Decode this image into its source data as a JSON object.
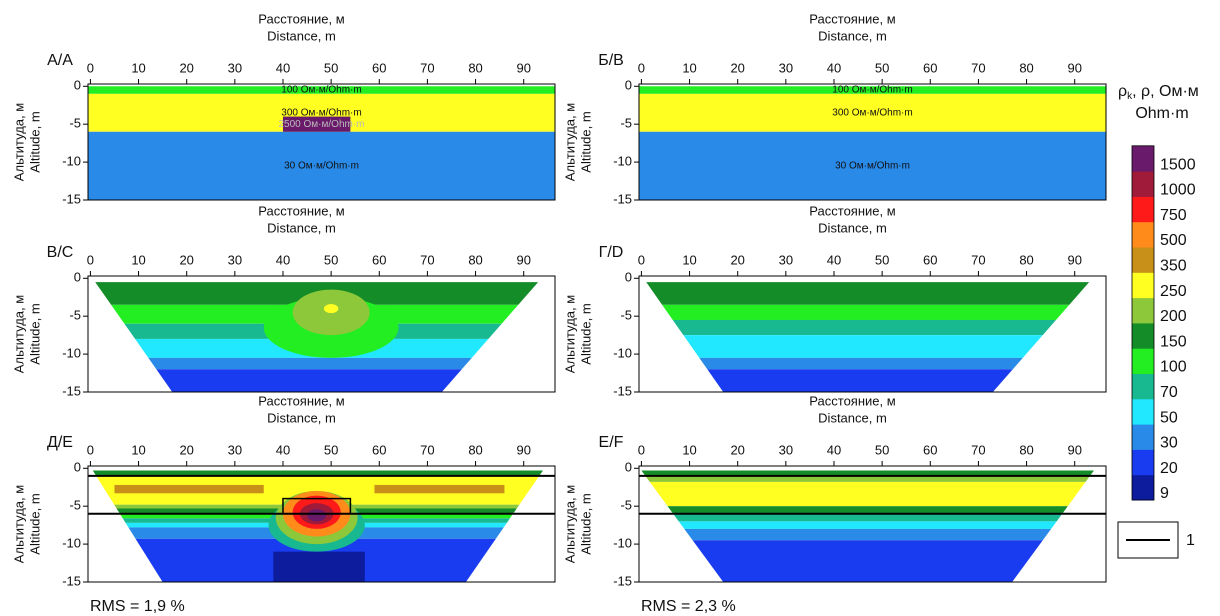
{
  "chart_data": [
    {
      "type": "section",
      "panel_label": "А/А",
      "x_title": [
        "Расстояние, м",
        "Distance, m"
      ],
      "y_title": [
        "Альтитуда, м",
        "Altitude, m"
      ],
      "xlim": [
        -0.5,
        96.5
      ],
      "ylim": [
        -15,
        0.3
      ],
      "xticks": [
        0,
        10,
        20,
        30,
        40,
        50,
        60,
        70,
        80,
        90
      ],
      "yticks": [
        0,
        -5,
        -10,
        -15
      ],
      "layers": [
        {
          "rho": 100,
          "top": 0,
          "bottom": -1,
          "label": "100 Ом·м/Ohm·m"
        },
        {
          "rho": 300,
          "top": -1,
          "bottom": -6,
          "label": "300 Ом·м/Ohm·m"
        },
        {
          "rho": 30,
          "top": -6,
          "bottom": -15,
          "label": "30 Ом·м/Ohm·m"
        }
      ],
      "anomalies": [
        {
          "shape": "rect",
          "x": [
            40,
            54
          ],
          "y": [
            -6,
            -4
          ],
          "rho": 2500,
          "label": "2500 Ом·м/Ohm·m"
        }
      ]
    },
    {
      "type": "section",
      "panel_label": "Б/B",
      "x_title": [
        "Расстояние, м",
        "Distance, m"
      ],
      "y_title": [
        "Альтитуда, м",
        "Altitude, m"
      ],
      "xlim": [
        -0.5,
        96.5
      ],
      "ylim": [
        -15,
        0.3
      ],
      "xticks": [
        0,
        10,
        20,
        30,
        40,
        50,
        60,
        70,
        80,
        90
      ],
      "yticks": [
        0,
        -5,
        -10,
        -15
      ],
      "layers": [
        {
          "rho": 100,
          "top": 0,
          "bottom": -1,
          "label": "100 Ом·м/Ohm·m"
        },
        {
          "rho": 300,
          "top": -1,
          "bottom": -6,
          "label": "300 Ом·м/Ohm·m"
        },
        {
          "rho": 30,
          "top": -6,
          "bottom": -15,
          "label": "30 Ом·м/Ohm·m"
        }
      ]
    },
    {
      "type": "section",
      "panel_label": "В/C",
      "x_title": [
        "Расстояние, м",
        "Distance, m"
      ],
      "y_title": [
        "Альтитуда, м",
        "Altitude, m"
      ],
      "xlim": [
        -0.5,
        96.5
      ],
      "ylim": [
        -15,
        0.3
      ],
      "xticks": [
        0,
        10,
        20,
        30,
        40,
        50,
        60,
        70,
        80,
        90
      ],
      "yticks": [
        0,
        -5,
        -10,
        -15
      ],
      "coverage": [
        [
          1,
          -0.5
        ],
        [
          93,
          -0.5
        ],
        [
          73,
          -15
        ],
        [
          17,
          -15
        ]
      ],
      "layers": [
        {
          "rho": 160,
          "top": 0,
          "bottom": -3.5
        },
        {
          "rho": 120,
          "top": -3.5,
          "bottom": -6
        },
        {
          "rho": 80,
          "top": -6,
          "bottom": -8
        },
        {
          "rho": 55,
          "top": -8,
          "bottom": -10.5
        },
        {
          "rho": 40,
          "top": -10.5,
          "bottom": -12
        },
        {
          "rho": 25,
          "top": -12,
          "bottom": -15
        }
      ],
      "anomalies": [
        {
          "shape": "ellipse",
          "x": 50,
          "y": -6.5,
          "rx": 14,
          "ry": 4,
          "rho": 120
        },
        {
          "shape": "ellipse",
          "x": 50,
          "y": -4.5,
          "rx": 8,
          "ry": 3,
          "rho": 220
        },
        {
          "shape": "ellipse",
          "x": 50,
          "y": -4,
          "rx": 1.5,
          "ry": 0.6,
          "rho": 260
        }
      ]
    },
    {
      "type": "section",
      "panel_label": "Г/D",
      "x_title": [
        "Расстояние, м",
        "Distance, m"
      ],
      "y_title": [
        "Альтитуда, м",
        "Altitude, m"
      ],
      "xlim": [
        -0.5,
        96.5
      ],
      "ylim": [
        -15,
        0.3
      ],
      "xticks": [
        0,
        10,
        20,
        30,
        40,
        50,
        60,
        70,
        80,
        90
      ],
      "yticks": [
        0,
        -5,
        -10,
        -15
      ],
      "coverage": [
        [
          1,
          -0.5
        ],
        [
          93,
          -0.5
        ],
        [
          73,
          -15
        ],
        [
          17,
          -15
        ]
      ],
      "layers": [
        {
          "rho": 160,
          "top": 0,
          "bottom": -3.5
        },
        {
          "rho": 120,
          "top": -3.5,
          "bottom": -5.5
        },
        {
          "rho": 80,
          "top": -5.5,
          "bottom": -7.5
        },
        {
          "rho": 55,
          "top": -7.5,
          "bottom": -10.5
        },
        {
          "rho": 40,
          "top": -10.5,
          "bottom": -12
        },
        {
          "rho": 25,
          "top": -12,
          "bottom": -15
        }
      ]
    },
    {
      "type": "section",
      "panel_label": "Д/E",
      "x_title": [
        "Расстояние, м",
        "Distance, m"
      ],
      "y_title": [
        "Альтитуда, м",
        "Altitude, m"
      ],
      "xlim": [
        -0.5,
        96.5
      ],
      "ylim": [
        -15,
        0.3
      ],
      "xticks": [
        0,
        10,
        20,
        30,
        40,
        50,
        60,
        70,
        80,
        90
      ],
      "yticks": [
        0,
        -5,
        -10,
        -15
      ],
      "coverage": [
        [
          0.5,
          -0.3
        ],
        [
          94,
          -0.3
        ],
        [
          78,
          -15
        ],
        [
          15,
          -15
        ]
      ],
      "layers": [
        {
          "rho": 160,
          "top": 0,
          "bottom": -1
        },
        {
          "rho": 300,
          "top": -1,
          "bottom": -4.8
        },
        {
          "rho": 220,
          "top": -4.8,
          "bottom": -5.3
        },
        {
          "rho": 160,
          "top": -5.3,
          "bottom": -6
        },
        {
          "rho": 120,
          "top": -6,
          "bottom": -6.6
        },
        {
          "rho": 80,
          "top": -6.6,
          "bottom": -7.2
        },
        {
          "rho": 55,
          "top": -7.2,
          "bottom": -7.8
        },
        {
          "rho": 40,
          "top": -7.8,
          "bottom": -9.3
        },
        {
          "rho": 25,
          "top": -9.3,
          "bottom": -15
        }
      ],
      "anomalies": [
        {
          "shape": "rect",
          "x": [
            5,
            36
          ],
          "y": [
            -3.3,
            -2.2
          ],
          "rho": 400
        },
        {
          "shape": "rect",
          "x": [
            59,
            86
          ],
          "y": [
            -3.3,
            -2.2
          ],
          "rho": 400
        },
        {
          "shape": "rect",
          "x": [
            38,
            57
          ],
          "y": [
            -15,
            -11
          ],
          "rho": 15
        },
        {
          "shape": "ellipse",
          "x": 47,
          "y": -7.5,
          "rx": 10,
          "ry": 3.5,
          "rho": 80
        },
        {
          "shape": "ellipse",
          "x": 47,
          "y": -6.5,
          "rx": 8.5,
          "ry": 3.5,
          "rho": 220
        },
        {
          "shape": "ellipse",
          "x": 47,
          "y": -6,
          "rx": 7,
          "ry": 3,
          "rho": 600
        },
        {
          "shape": "ellipse",
          "x": 47,
          "y": -5.8,
          "rx": 5,
          "ry": 2.2,
          "rho": 800
        },
        {
          "shape": "ellipse",
          "x": 47,
          "y": -6,
          "rx": 3.5,
          "ry": 1.4,
          "rho": 1200
        },
        {
          "shape": "ellipse",
          "x": 47,
          "y": -6.2,
          "rx": 2,
          "ry": 0.8,
          "rho": 1600
        }
      ],
      "boundaries": {
        "depths": [
          -1,
          -6
        ],
        "block": {
          "x": [
            40,
            54
          ],
          "y": [
            -6,
            -4
          ]
        }
      },
      "rms": "RMS = 1,9 %"
    },
    {
      "type": "section",
      "panel_label": "Е/F",
      "x_title": [
        "Расстояние, м",
        "Distance, m"
      ],
      "y_title": [
        "Альтитуда, м",
        "Altitude, m"
      ],
      "xlim": [
        -0.5,
        96.5
      ],
      "ylim": [
        -15,
        0.3
      ],
      "xticks": [
        0,
        10,
        20,
        30,
        40,
        50,
        60,
        70,
        80,
        90
      ],
      "yticks": [
        0,
        -5,
        -10,
        -15
      ],
      "coverage": [
        [
          0,
          -0.3
        ],
        [
          94,
          -0.3
        ],
        [
          77,
          -15
        ],
        [
          17,
          -15
        ]
      ],
      "layers": [
        {
          "rho": 160,
          "top": 0,
          "bottom": -1
        },
        {
          "rho": 220,
          "top": -1,
          "bottom": -1.8
        },
        {
          "rho": 300,
          "top": -1.8,
          "bottom": -5
        },
        {
          "rho": 160,
          "top": -5,
          "bottom": -6
        },
        {
          "rho": 80,
          "top": -6,
          "bottom": -7
        },
        {
          "rho": 55,
          "top": -7,
          "bottom": -8
        },
        {
          "rho": 40,
          "top": -8,
          "bottom": -9.5
        },
        {
          "rho": 25,
          "top": -9.5,
          "bottom": -15
        }
      ],
      "boundaries": {
        "depths": [
          -1,
          -6
        ]
      },
      "rms": "RMS = 2,3 %"
    }
  ],
  "colorbar": {
    "title": [
      "ρ",
      "k",
      ", ρ, Ом·м"
    ],
    "subtitle": "Ohm·m",
    "ticks": [
      9,
      20,
      30,
      50,
      70,
      100,
      150,
      200,
      250,
      350,
      500,
      750,
      1000,
      1500
    ],
    "colors": [
      "#0c1c9c",
      "#1a3cf0",
      "#2a8ae8",
      "#22e8ff",
      "#18b890",
      "#22ee22",
      "#148c28",
      "#8cc83a",
      "#ffff22",
      "#c89018",
      "#ff8c1a",
      "#ff1a1a",
      "#a01a3a",
      "#6a1a6a"
    ]
  },
  "legend": {
    "label": "1"
  }
}
